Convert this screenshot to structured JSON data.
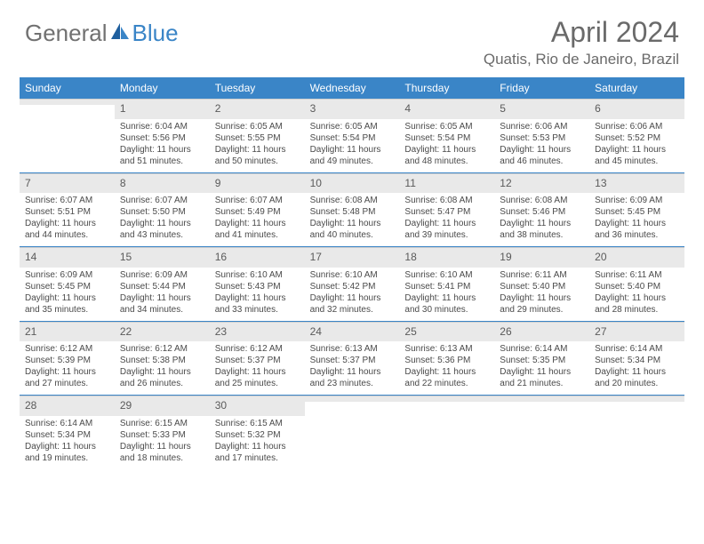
{
  "logo": {
    "general": "General",
    "blue": "Blue"
  },
  "title": "April 2024",
  "location": "Quatis, Rio de Janeiro, Brazil",
  "colors": {
    "header_bg": "#3a85c7",
    "header_text": "#ffffff",
    "daynum_bg": "#e9e9e9",
    "text": "#4a4a4a",
    "sep": "#3a85c7"
  },
  "weekdays": [
    "Sunday",
    "Monday",
    "Tuesday",
    "Wednesday",
    "Thursday",
    "Friday",
    "Saturday"
  ],
  "weeks": [
    [
      {
        "num": "",
        "sunrise": "",
        "sunset": "",
        "daylight": ""
      },
      {
        "num": "1",
        "sunrise": "Sunrise: 6:04 AM",
        "sunset": "Sunset: 5:56 PM",
        "daylight": "Daylight: 11 hours and 51 minutes."
      },
      {
        "num": "2",
        "sunrise": "Sunrise: 6:05 AM",
        "sunset": "Sunset: 5:55 PM",
        "daylight": "Daylight: 11 hours and 50 minutes."
      },
      {
        "num": "3",
        "sunrise": "Sunrise: 6:05 AM",
        "sunset": "Sunset: 5:54 PM",
        "daylight": "Daylight: 11 hours and 49 minutes."
      },
      {
        "num": "4",
        "sunrise": "Sunrise: 6:05 AM",
        "sunset": "Sunset: 5:54 PM",
        "daylight": "Daylight: 11 hours and 48 minutes."
      },
      {
        "num": "5",
        "sunrise": "Sunrise: 6:06 AM",
        "sunset": "Sunset: 5:53 PM",
        "daylight": "Daylight: 11 hours and 46 minutes."
      },
      {
        "num": "6",
        "sunrise": "Sunrise: 6:06 AM",
        "sunset": "Sunset: 5:52 PM",
        "daylight": "Daylight: 11 hours and 45 minutes."
      }
    ],
    [
      {
        "num": "7",
        "sunrise": "Sunrise: 6:07 AM",
        "sunset": "Sunset: 5:51 PM",
        "daylight": "Daylight: 11 hours and 44 minutes."
      },
      {
        "num": "8",
        "sunrise": "Sunrise: 6:07 AM",
        "sunset": "Sunset: 5:50 PM",
        "daylight": "Daylight: 11 hours and 43 minutes."
      },
      {
        "num": "9",
        "sunrise": "Sunrise: 6:07 AM",
        "sunset": "Sunset: 5:49 PM",
        "daylight": "Daylight: 11 hours and 41 minutes."
      },
      {
        "num": "10",
        "sunrise": "Sunrise: 6:08 AM",
        "sunset": "Sunset: 5:48 PM",
        "daylight": "Daylight: 11 hours and 40 minutes."
      },
      {
        "num": "11",
        "sunrise": "Sunrise: 6:08 AM",
        "sunset": "Sunset: 5:47 PM",
        "daylight": "Daylight: 11 hours and 39 minutes."
      },
      {
        "num": "12",
        "sunrise": "Sunrise: 6:08 AM",
        "sunset": "Sunset: 5:46 PM",
        "daylight": "Daylight: 11 hours and 38 minutes."
      },
      {
        "num": "13",
        "sunrise": "Sunrise: 6:09 AM",
        "sunset": "Sunset: 5:45 PM",
        "daylight": "Daylight: 11 hours and 36 minutes."
      }
    ],
    [
      {
        "num": "14",
        "sunrise": "Sunrise: 6:09 AM",
        "sunset": "Sunset: 5:45 PM",
        "daylight": "Daylight: 11 hours and 35 minutes."
      },
      {
        "num": "15",
        "sunrise": "Sunrise: 6:09 AM",
        "sunset": "Sunset: 5:44 PM",
        "daylight": "Daylight: 11 hours and 34 minutes."
      },
      {
        "num": "16",
        "sunrise": "Sunrise: 6:10 AM",
        "sunset": "Sunset: 5:43 PM",
        "daylight": "Daylight: 11 hours and 33 minutes."
      },
      {
        "num": "17",
        "sunrise": "Sunrise: 6:10 AM",
        "sunset": "Sunset: 5:42 PM",
        "daylight": "Daylight: 11 hours and 32 minutes."
      },
      {
        "num": "18",
        "sunrise": "Sunrise: 6:10 AM",
        "sunset": "Sunset: 5:41 PM",
        "daylight": "Daylight: 11 hours and 30 minutes."
      },
      {
        "num": "19",
        "sunrise": "Sunrise: 6:11 AM",
        "sunset": "Sunset: 5:40 PM",
        "daylight": "Daylight: 11 hours and 29 minutes."
      },
      {
        "num": "20",
        "sunrise": "Sunrise: 6:11 AM",
        "sunset": "Sunset: 5:40 PM",
        "daylight": "Daylight: 11 hours and 28 minutes."
      }
    ],
    [
      {
        "num": "21",
        "sunrise": "Sunrise: 6:12 AM",
        "sunset": "Sunset: 5:39 PM",
        "daylight": "Daylight: 11 hours and 27 minutes."
      },
      {
        "num": "22",
        "sunrise": "Sunrise: 6:12 AM",
        "sunset": "Sunset: 5:38 PM",
        "daylight": "Daylight: 11 hours and 26 minutes."
      },
      {
        "num": "23",
        "sunrise": "Sunrise: 6:12 AM",
        "sunset": "Sunset: 5:37 PM",
        "daylight": "Daylight: 11 hours and 25 minutes."
      },
      {
        "num": "24",
        "sunrise": "Sunrise: 6:13 AM",
        "sunset": "Sunset: 5:37 PM",
        "daylight": "Daylight: 11 hours and 23 minutes."
      },
      {
        "num": "25",
        "sunrise": "Sunrise: 6:13 AM",
        "sunset": "Sunset: 5:36 PM",
        "daylight": "Daylight: 11 hours and 22 minutes."
      },
      {
        "num": "26",
        "sunrise": "Sunrise: 6:14 AM",
        "sunset": "Sunset: 5:35 PM",
        "daylight": "Daylight: 11 hours and 21 minutes."
      },
      {
        "num": "27",
        "sunrise": "Sunrise: 6:14 AM",
        "sunset": "Sunset: 5:34 PM",
        "daylight": "Daylight: 11 hours and 20 minutes."
      }
    ],
    [
      {
        "num": "28",
        "sunrise": "Sunrise: 6:14 AM",
        "sunset": "Sunset: 5:34 PM",
        "daylight": "Daylight: 11 hours and 19 minutes."
      },
      {
        "num": "29",
        "sunrise": "Sunrise: 6:15 AM",
        "sunset": "Sunset: 5:33 PM",
        "daylight": "Daylight: 11 hours and 18 minutes."
      },
      {
        "num": "30",
        "sunrise": "Sunrise: 6:15 AM",
        "sunset": "Sunset: 5:32 PM",
        "daylight": "Daylight: 11 hours and 17 minutes."
      },
      {
        "num": "",
        "sunrise": "",
        "sunset": "",
        "daylight": ""
      },
      {
        "num": "",
        "sunrise": "",
        "sunset": "",
        "daylight": ""
      },
      {
        "num": "",
        "sunrise": "",
        "sunset": "",
        "daylight": ""
      },
      {
        "num": "",
        "sunrise": "",
        "sunset": "",
        "daylight": ""
      }
    ]
  ]
}
